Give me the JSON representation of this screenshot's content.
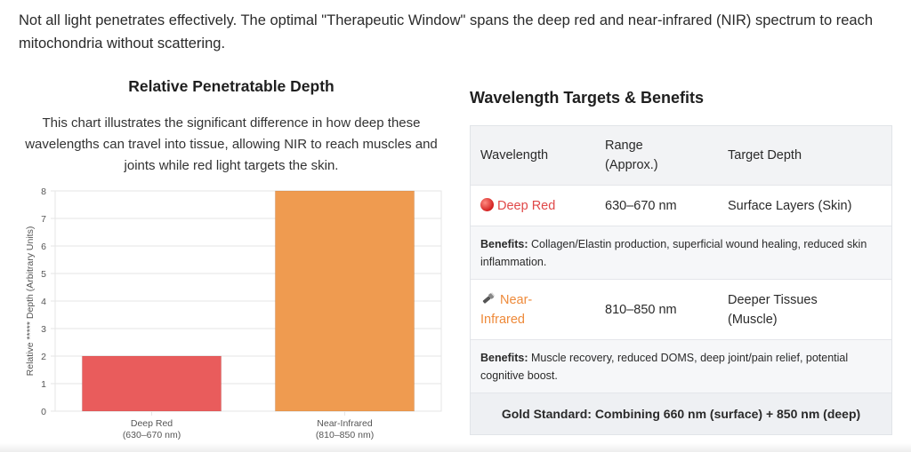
{
  "intro": "Not all light penetrates effectively. The optimal \"Therapeutic Window\" spans the deep red and near-infrared (NIR) spectrum to reach mitochondria without scattering.",
  "chart_section": {
    "title": "Relative Penetratable Depth",
    "description": "This chart illustrates the significant difference in how deep these wavelengths can travel into tissue, allowing NIR to reach muscles and joints while red light targets the skin."
  },
  "chart_data": {
    "type": "bar",
    "categories": [
      [
        "Deep Red",
        "(630–670 nm)"
      ],
      [
        "Near-Infrared",
        "(810–850 nm)"
      ]
    ],
    "values": [
      2,
      8
    ],
    "colors": [
      "#e95c5c",
      "#ef9b50"
    ],
    "title": "",
    "xlabel": "",
    "ylabel": "Relative ***** Depth (Arbitrary Units)",
    "ylim": [
      0,
      8
    ],
    "yticks": [
      "0",
      "1",
      "2",
      "3",
      "4",
      "5",
      "6",
      "7",
      "8"
    ],
    "grid": true,
    "legend": "none"
  },
  "table": {
    "title": "Wavelength Targets & Benefits",
    "headers": {
      "wavelength": "Wavelength",
      "range_line1": "Range",
      "range_line2": "(Approx.)",
      "depth": "Target Depth"
    },
    "row1": {
      "icon": "red-circle-icon",
      "name": "Deep Red",
      "range": "630–670 nm",
      "depth": "Surface Layers (Skin)",
      "benefits_label": "Benefits:",
      "benefits": "Collagen/Elastin production, superficial wound healing, reduced skin inflammation."
    },
    "row2": {
      "icon": "flashlight-icon",
      "name_line1": "Near-",
      "name_line2": "Infrared",
      "range": "810–850 nm",
      "depth_line1": "Deeper Tissues",
      "depth_line2": "(Muscle)",
      "benefits_label": "Benefits:",
      "benefits": "Muscle recovery, reduced DOMS, deep joint/pain relief, potential cognitive boost."
    },
    "gold": "Gold Standard: Combining 660 nm (surface) + 850 nm (deep)"
  }
}
